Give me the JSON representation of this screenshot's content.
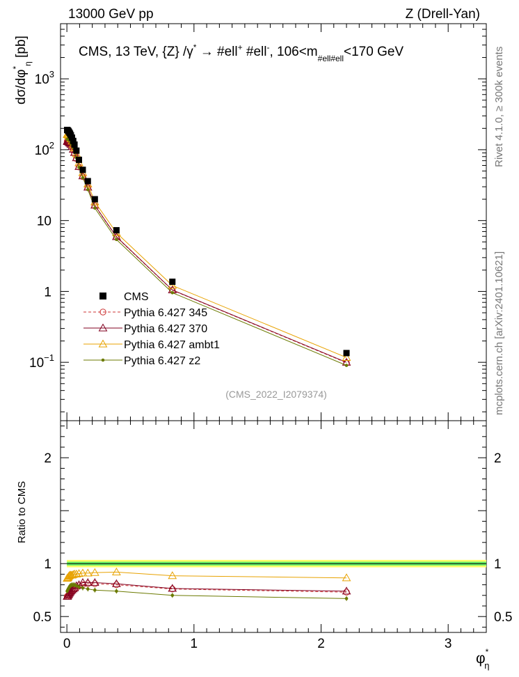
{
  "header": {
    "left": "13000 GeV pp",
    "right": "Z (Drell-Yan)"
  },
  "sidebar": {
    "rivet": "Rivet 4.1.0, ≥ 300k events",
    "mcplots": "mcplots.cern.ch [arXiv:2401.10621]"
  },
  "chart_data": {
    "type": "line",
    "title_parts": {
      "prefix": "CMS, 13 TeV, {Z} /γ",
      "star": "*",
      "arrow": " → ",
      "ell1": "#ell",
      "plus": "+",
      "ell2": " #ell",
      "minus": "-",
      "range_lo": ", 106<m",
      "sub": "#ell#ell",
      "range_hi": "<170 GeV"
    },
    "analysis_label": "(CMS_2022_I2079374)",
    "ylabel_main": {
      "base": "dσ/dφ",
      "sup": "*",
      "sub": "η",
      "unit": " [pb]"
    },
    "ylabel_ratio": "Ratio to CMS",
    "xlabel": {
      "base": "φ",
      "sup": "*",
      "sub": "η"
    },
    "xlim": [
      -0.05,
      3.3
    ],
    "ylim_main": [
      0.015,
      6000
    ],
    "ylim_ratio": [
      0.35,
      2.35
    ],
    "xticks": [
      {
        "v": 0,
        "label": "0"
      },
      {
        "v": 1,
        "label": "1"
      },
      {
        "v": 2,
        "label": "2"
      },
      {
        "v": 3,
        "label": "3"
      }
    ],
    "yticks_main": [
      {
        "v": 1000,
        "base": "10",
        "exp": "3"
      },
      {
        "v": 100,
        "base": "10",
        "exp": "2"
      },
      {
        "v": 10,
        "base": "10",
        "exp": ""
      },
      {
        "v": 1,
        "base": "1",
        "exp": ""
      },
      {
        "v": 0.1,
        "base": "10",
        "exp": "−1"
      }
    ],
    "yticks_ratio": [
      {
        "v": 2,
        "label": "2"
      },
      {
        "v": 1,
        "label": "1"
      },
      {
        "v": 0.5,
        "label": "0.5"
      }
    ],
    "x": [
      0.002,
      0.006,
      0.0105,
      0.015,
      0.02,
      0.025,
      0.0315,
      0.04,
      0.05,
      0.06,
      0.075,
      0.095,
      0.125,
      0.165,
      0.22,
      0.39,
      0.83,
      2.2
    ],
    "data": {
      "name": "CMS",
      "values": [
        190,
        188,
        185,
        180,
        174,
        168,
        160,
        148,
        133,
        118,
        97,
        72,
        52,
        36,
        20,
        7.3,
        1.37,
        0.135
      ]
    },
    "band_color_inner": "#66ee66",
    "band_color_outer": "#ffff66",
    "series": [
      {
        "name": "Pythia 6.427 345",
        "color": "#cc3333",
        "marker": "circle",
        "dashed": true,
        "ratio": [
          0.69,
          0.69,
          0.7,
          0.7,
          0.71,
          0.72,
          0.73,
          0.74,
          0.75,
          0.76,
          0.77,
          0.79,
          0.8,
          0.81,
          0.81,
          0.8,
          0.76,
          0.73
        ]
      },
      {
        "name": "Pythia 6.427 370",
        "color": "#800020",
        "marker": "triangle",
        "dashed": false,
        "ratio": [
          0.69,
          0.69,
          0.7,
          0.71,
          0.72,
          0.73,
          0.74,
          0.75,
          0.76,
          0.77,
          0.79,
          0.8,
          0.82,
          0.82,
          0.82,
          0.81,
          0.765,
          0.74
        ]
      },
      {
        "name": "Pythia 6.427 ambt1",
        "color": "#e8a200",
        "marker": "triangle",
        "dashed": false,
        "ratio": [
          0.86,
          0.865,
          0.87,
          0.88,
          0.885,
          0.89,
          0.89,
          0.89,
          0.895,
          0.9,
          0.9,
          0.905,
          0.91,
          0.91,
          0.915,
          0.92,
          0.885,
          0.865
        ]
      },
      {
        "name": "Pythia 6.427 z2",
        "color": "#6b7a00",
        "marker": "dot",
        "dashed": false,
        "ratio": [
          0.74,
          0.75,
          0.76,
          0.77,
          0.78,
          0.79,
          0.795,
          0.8,
          0.8,
          0.8,
          0.79,
          0.78,
          0.77,
          0.76,
          0.75,
          0.74,
          0.7,
          0.67
        ]
      }
    ]
  }
}
